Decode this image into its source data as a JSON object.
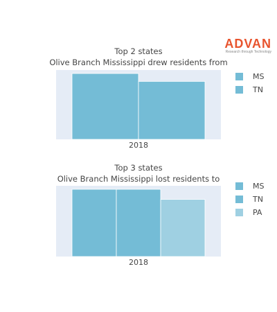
{
  "brand": {
    "name": "ADVAN",
    "tagline": "Research through Technology"
  },
  "colors": {
    "plot_bg": "#e5ecf6",
    "bar_main": "#74bcd6",
    "bar_light": "#9fd0e2"
  },
  "chart_data": [
    {
      "type": "bar",
      "title": "Top 2 states",
      "subtitle": "Olive Branch Mississippi drew residents from",
      "categories": [
        "2018"
      ],
      "series": [
        {
          "name": "MS",
          "values": [
            1.0
          ],
          "color": "#74bcd6"
        },
        {
          "name": "TN",
          "values": [
            0.88
          ],
          "color": "#74bcd6"
        }
      ],
      "legend_position": "right"
    },
    {
      "type": "bar",
      "title": "Top 3 states",
      "subtitle": "Olive Branch Mississippi lost residents to",
      "categories": [
        "2018"
      ],
      "series": [
        {
          "name": "MS",
          "values": [
            1.0
          ],
          "color": "#74bcd6"
        },
        {
          "name": "TN",
          "values": [
            1.0
          ],
          "color": "#74bcd6"
        },
        {
          "name": "PA",
          "values": [
            0.85
          ],
          "color": "#9fd0e2"
        }
      ],
      "legend_position": "right"
    }
  ]
}
